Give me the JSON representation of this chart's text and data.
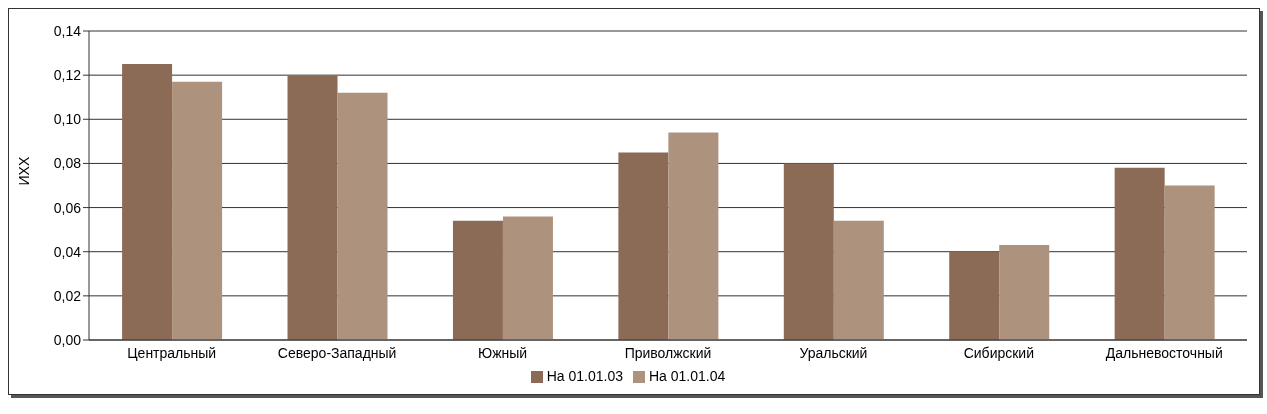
{
  "chart_data": {
    "type": "bar",
    "ylabel": "ИХХ",
    "categories": [
      "Центральный",
      "Северо-Западный",
      "Южный",
      "Приволжский",
      "Уральский",
      "Сибирский",
      "Дальневосточный"
    ],
    "series": [
      {
        "name": "На 01.01.03",
        "color": "#8c6b56",
        "values": [
          0.125,
          0.12,
          0.054,
          0.085,
          0.08,
          0.04,
          0.078
        ]
      },
      {
        "name": "На 01.01.04",
        "color": "#ad927e",
        "values": [
          0.117,
          0.112,
          0.056,
          0.094,
          0.054,
          0.043,
          0.07
        ]
      }
    ],
    "ylim": [
      0,
      0.14
    ],
    "yticks": [
      {
        "value": 0,
        "label": "0,00"
      },
      {
        "value": 0.02,
        "label": "0,02"
      },
      {
        "value": 0.04,
        "label": "0,04"
      },
      {
        "value": 0.06,
        "label": "0,06"
      },
      {
        "value": 0.08,
        "label": "0,08"
      },
      {
        "value": 0.1,
        "label": "0,10"
      },
      {
        "value": 0.12,
        "label": "0,12"
      },
      {
        "value": 0.14,
        "label": "0,14"
      }
    ],
    "grid": "y",
    "legend": "bottom"
  }
}
